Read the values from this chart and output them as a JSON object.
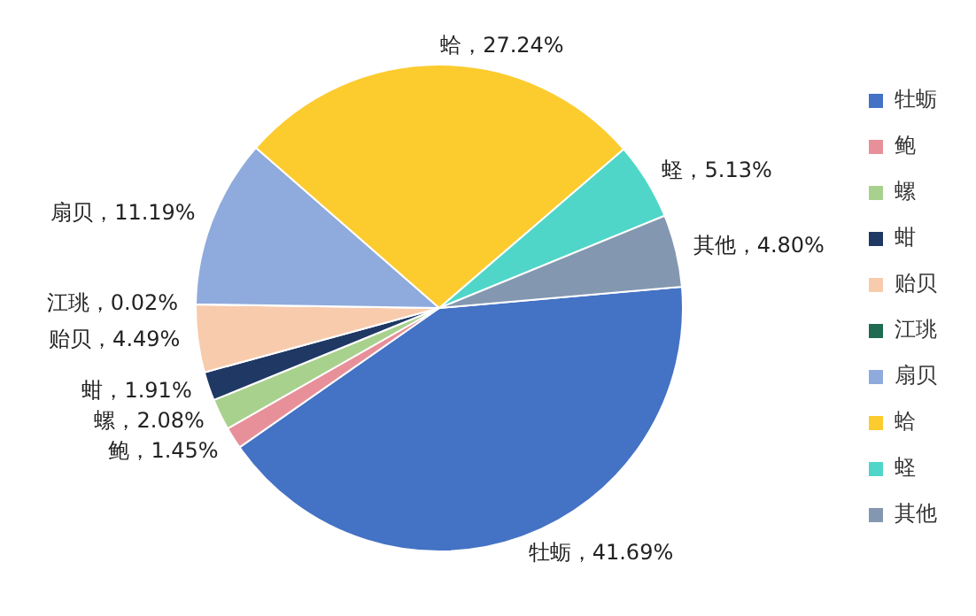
{
  "chart_data": {
    "type": "pie",
    "categories": [
      "牡蛎",
      "鲍",
      "螺",
      "蚶",
      "贻贝",
      "江珧",
      "扇贝",
      "蛤",
      "蛏",
      "其他"
    ],
    "values": [
      41.69,
      1.45,
      2.08,
      1.91,
      4.49,
      0.02,
      11.19,
      27.24,
      5.13,
      4.8
    ],
    "value_labels": [
      "牡蛎，41.69%",
      "鲍，1.45%",
      "螺，2.08%",
      "蚶，1.91%",
      "贻贝，4.49%",
      "江珧，0.02%",
      "扇贝，11.19%",
      "蛤，27.24%",
      "蛏，5.13%",
      "其他，4.80%"
    ],
    "colors": [
      "#4472c4",
      "#e8909a",
      "#a9d18e",
      "#1f3864",
      "#f8cbad",
      "#1e6b52",
      "#8faadc",
      "#fccb2e",
      "#4fd6c8",
      "#8497b0"
    ],
    "legend": "right"
  }
}
